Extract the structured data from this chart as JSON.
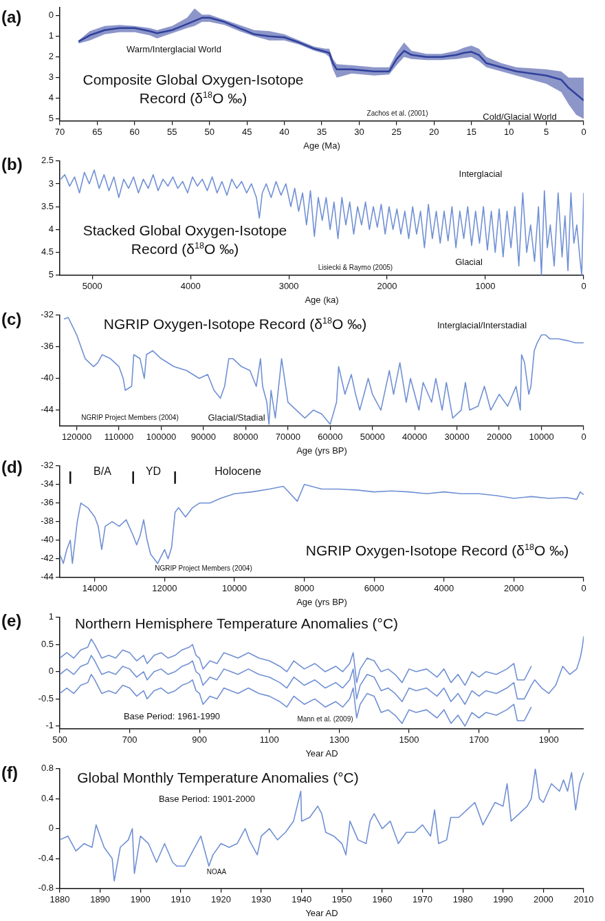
{
  "chart_data": [
    {
      "type": "line",
      "title": "Composite Global Oxygen-Isotope Record (δ$^{18}$O ‰)",
      "xlabel": "Age (Ma)",
      "xlim": [
        70,
        0
      ],
      "xticks": [
        70,
        65,
        60,
        55,
        50,
        45,
        40,
        35,
        30,
        25,
        20,
        15,
        10,
        5,
        0
      ],
      "ylim": [
        5.1,
        -0.4
      ],
      "yticks": [
        0,
        1,
        2,
        3,
        4,
        5
      ],
      "annotations": [
        "(a)",
        "Warm/Interglacial World",
        "Zachos et al. (2001)",
        "Cold/Glacial World"
      ],
      "x": [
        67.5,
        66,
        64,
        62,
        60,
        58,
        57,
        55,
        53,
        52,
        51,
        50,
        48,
        46,
        44,
        42,
        40,
        38,
        36,
        34.5,
        34,
        33.5,
        33,
        31,
        28,
        26,
        25,
        24,
        23,
        21,
        19,
        17,
        16,
        15,
        14,
        13,
        11,
        9,
        7,
        5,
        3,
        2,
        1,
        0
      ],
      "series": [
        {
          "color": "#2f409c",
          "values": [
            1.25,
            0.95,
            0.7,
            0.6,
            0.6,
            0.75,
            0.85,
            0.7,
            0.4,
            0.25,
            0.1,
            0.1,
            0.3,
            0.6,
            0.9,
            1.0,
            1.05,
            1.3,
            1.6,
            1.75,
            1.8,
            2.3,
            2.6,
            2.6,
            2.7,
            2.7,
            2.1,
            1.7,
            1.9,
            2.0,
            2.0,
            1.9,
            1.8,
            1.75,
            1.9,
            2.3,
            2.5,
            2.7,
            2.8,
            2.9,
            3.1,
            3.5,
            3.8,
            4.1
          ],
          "lower": [
            1.2,
            0.75,
            0.5,
            0.45,
            0.5,
            0.6,
            0.7,
            0.5,
            0.1,
            -0.35,
            -0.05,
            -0.05,
            0.2,
            0.45,
            0.7,
            0.75,
            0.9,
            1.2,
            1.5,
            1.6,
            1.6,
            2.1,
            2.35,
            2.4,
            2.5,
            2.5,
            1.8,
            1.3,
            1.7,
            1.85,
            1.85,
            1.7,
            1.55,
            1.45,
            1.6,
            2.0,
            2.3,
            2.5,
            2.55,
            2.6,
            2.7,
            3.0,
            3.0,
            3.0
          ],
          "upper": [
            1.35,
            1.2,
            0.9,
            0.8,
            0.8,
            0.95,
            1.1,
            0.85,
            0.6,
            0.5,
            0.3,
            0.3,
            0.45,
            0.75,
            1.0,
            1.2,
            1.2,
            1.4,
            1.7,
            1.85,
            2.0,
            2.6,
            3.0,
            2.8,
            2.9,
            2.85,
            2.4,
            2.0,
            2.1,
            2.15,
            2.15,
            2.1,
            2.05,
            2.0,
            2.2,
            2.5,
            2.7,
            2.9,
            3.1,
            3.3,
            3.7,
            4.3,
            4.8,
            5.0
          ]
        }
      ]
    },
    {
      "type": "line",
      "title": "Stacked Global Oxygen-Isotope Record (δ$^{18}$O ‰)",
      "xlabel": "Age (ka)",
      "xlim": [
        5330,
        0
      ],
      "xticks": [
        5000,
        4000,
        3000,
        2000,
        1000,
        0
      ],
      "ylim": [
        5,
        2.5
      ],
      "yticks": [
        2.5,
        3,
        3.5,
        4,
        4.5,
        5
      ],
      "annotations": [
        "(b)",
        "Interglacial",
        "Lisiecki & Raymo (2005)",
        "Glacial"
      ],
      "x": [
        5320,
        5280,
        5230,
        5180,
        5130,
        5080,
        5030,
        4980,
        4930,
        4880,
        4830,
        4780,
        4730,
        4680,
        4630,
        4580,
        4530,
        4480,
        4430,
        4380,
        4330,
        4280,
        4230,
        4180,
        4130,
        4080,
        4030,
        3980,
        3930,
        3880,
        3830,
        3780,
        3730,
        3680,
        3630,
        3580,
        3530,
        3480,
        3430,
        3380,
        3330,
        3300,
        3270,
        3230,
        3180,
        3130,
        3080,
        3030,
        2980,
        2940,
        2900,
        2860,
        2820,
        2780,
        2740,
        2700,
        2660,
        2620,
        2580,
        2540,
        2500,
        2460,
        2420,
        2380,
        2340,
        2300,
        2260,
        2220,
        2180,
        2140,
        2100,
        2060,
        2020,
        1980,
        1940,
        1900,
        1860,
        1820,
        1780,
        1740,
        1700,
        1660,
        1620,
        1580,
        1540,
        1500,
        1460,
        1420,
        1380,
        1340,
        1300,
        1260,
        1220,
        1180,
        1140,
        1100,
        1060,
        1020,
        980,
        940,
        900,
        860,
        820,
        780,
        740,
        700,
        660,
        620,
        580,
        540,
        500,
        460,
        430,
        400,
        370,
        340,
        300,
        260,
        220,
        190,
        160,
        130,
        100,
        70,
        40,
        20,
        0
      ],
      "series": [
        {
          "color": "#7090d4",
          "values": [
            2.9,
            2.8,
            3.05,
            2.85,
            3.2,
            2.75,
            3.0,
            2.7,
            3.1,
            2.8,
            3.15,
            2.85,
            3.3,
            2.9,
            3.1,
            2.85,
            3.2,
            2.9,
            3.1,
            2.8,
            3.15,
            2.9,
            3.05,
            2.85,
            3.1,
            2.95,
            3.2,
            2.85,
            3.05,
            2.9,
            3.15,
            2.85,
            3.2,
            2.95,
            3.25,
            2.9,
            3.1,
            2.95,
            3.2,
            3.0,
            3.3,
            3.75,
            3.2,
            3.0,
            3.3,
            2.95,
            3.25,
            3.0,
            3.5,
            3.1,
            3.6,
            3.2,
            3.9,
            3.15,
            4.15,
            3.3,
            3.8,
            3.3,
            4.0,
            3.4,
            4.2,
            3.3,
            3.9,
            3.4,
            4.1,
            3.5,
            3.9,
            3.4,
            4.0,
            3.5,
            3.95,
            3.45,
            4.1,
            3.5,
            4.0,
            3.55,
            4.1,
            3.6,
            4.2,
            3.5,
            4.1,
            3.6,
            4.4,
            3.45,
            4.2,
            3.6,
            4.3,
            3.6,
            4.25,
            3.5,
            4.4,
            3.6,
            4.2,
            3.5,
            4.35,
            3.6,
            4.3,
            3.5,
            4.45,
            3.6,
            4.5,
            3.55,
            4.6,
            3.6,
            4.4,
            3.5,
            4.8,
            3.2,
            4.5,
            3.9,
            4.7,
            3.5,
            5.0,
            3.15,
            4.4,
            3.9,
            4.8,
            3.2,
            4.6,
            3.7,
            4.9,
            3.2,
            4.3,
            3.9,
            4.6,
            5.0,
            3.2
          ]
        }
      ]
    },
    {
      "type": "line",
      "title": "NGRIP Oxygen-Isotope Record (δ$^{18}$O ‰)",
      "xlabel": "Age (yrs BP)",
      "xlim": [
        124000,
        0
      ],
      "xticks": [
        120000,
        110000,
        100000,
        90000,
        80000,
        70000,
        60000,
        50000,
        40000,
        30000,
        20000,
        10000,
        0
      ],
      "ylim": [
        -46,
        -32
      ],
      "yticks": [
        -32,
        -36,
        -40,
        -44
      ],
      "annotations": [
        "(c)",
        "Interglacial/Interstadial",
        "NGRIP Project Members (2004)",
        "Glacial/Stadial"
      ],
      "x": [
        123000,
        122000,
        120000,
        118000,
        116000,
        115000,
        114000,
        112000,
        110000,
        109000,
        108500,
        107000,
        106500,
        105000,
        104000,
        103500,
        102000,
        100000,
        97000,
        94000,
        91000,
        89000,
        87500,
        86000,
        85000,
        84000,
        83000,
        81000,
        79000,
        77500,
        76500,
        76000,
        75000,
        74500,
        74000,
        73000,
        72000,
        71500,
        70000,
        68000,
        66000,
        64000,
        62000,
        60000,
        58500,
        58000,
        56500,
        55000,
        54000,
        53000,
        51000,
        50000,
        48000,
        46000,
        45000,
        43500,
        42000,
        41000,
        39000,
        38000,
        36000,
        35000,
        33500,
        32500,
        31000,
        29000,
        28000,
        27000,
        25000,
        23500,
        22000,
        20000,
        18000,
        16000,
        15000,
        14700,
        14000,
        13000,
        12500,
        11700,
        11000,
        10000,
        9000,
        8000,
        6000,
        4000,
        2000,
        0
      ],
      "series": [
        {
          "color": "#7090d4",
          "values": [
            -32.5,
            -32.3,
            -34.5,
            -37.5,
            -38.5,
            -38,
            -37,
            -37.5,
            -38.5,
            -40,
            -41.5,
            -41,
            -37,
            -37.5,
            -40,
            -37,
            -36.5,
            -37.5,
            -38.5,
            -39,
            -40,
            -39.5,
            -41.5,
            -42.5,
            -41,
            -37.5,
            -37.5,
            -38.5,
            -39,
            -41,
            -37.5,
            -41,
            -43,
            -45.8,
            -41.5,
            -45,
            -40,
            -37.5,
            -43,
            -44,
            -45,
            -44,
            -44.5,
            -45.8,
            -43,
            -38.5,
            -42,
            -39.5,
            -42,
            -44,
            -40,
            -42,
            -44,
            -39,
            -42,
            -38,
            -43,
            -40,
            -44,
            -40.5,
            -43,
            -40,
            -44,
            -40.5,
            -45,
            -44,
            -40.5,
            -44,
            -43.5,
            -41,
            -44,
            -42,
            -43.5,
            -41,
            -44,
            -37,
            -38,
            -42,
            -41,
            -36.5,
            -35.5,
            -34.5,
            -34.5,
            -35,
            -35,
            -35.2,
            -35.5,
            -35.5
          ]
        }
      ]
    },
    {
      "type": "line",
      "title": "NGRIP Oxygen-Isotope Record (δ$^{18}$O ‰)",
      "xlabel": "Age (yrs BP)",
      "xlim": [
        15000,
        0
      ],
      "xticks": [
        14000,
        12000,
        10000,
        8000,
        6000,
        4000,
        2000,
        0
      ],
      "ylim": [
        -44,
        -32
      ],
      "yticks": [
        -32,
        -34,
        -36,
        -38,
        -40,
        -42,
        -44
      ],
      "annotations": [
        "(d)",
        "B/A",
        "YD",
        "Holocene",
        "NGRIP Project Members (2004)"
      ],
      "ref_lines": [
        {
          "axis": "x",
          "value": 14700
        },
        {
          "axis": "x",
          "value": 12900
        },
        {
          "axis": "x",
          "value": 11700
        }
      ],
      "x": [
        15000,
        14900,
        14800,
        14700,
        14640,
        14500,
        14400,
        14200,
        14000,
        13900,
        13800,
        13700,
        13500,
        13300,
        13100,
        12900,
        12800,
        12700,
        12600,
        12500,
        12400,
        12200,
        12000,
        11900,
        11800,
        11700,
        11600,
        11400,
        11200,
        11000,
        10700,
        10400,
        10000,
        9500,
        9000,
        8600,
        8200,
        8000,
        7500,
        7000,
        6500,
        6000,
        5500,
        5000,
        4500,
        4000,
        3500,
        3000,
        2500,
        2000,
        1500,
        1000,
        500,
        200,
        100,
        0
      ],
      "series": [
        {
          "color": "#7090d4",
          "values": [
            -41.5,
            -42.5,
            -41,
            -40,
            -42.5,
            -38,
            -36,
            -36.5,
            -37.5,
            -38.5,
            -41,
            -38.5,
            -38,
            -38.5,
            -37.8,
            -39.5,
            -40.5,
            -39.5,
            -37.8,
            -40,
            -41.5,
            -42.5,
            -41,
            -42,
            -40.8,
            -37,
            -36.5,
            -37.5,
            -36.5,
            -36,
            -36,
            -35.5,
            -35,
            -34.8,
            -34.5,
            -34.2,
            -35.8,
            -34,
            -34.5,
            -34.5,
            -34.6,
            -34.8,
            -34.7,
            -34.8,
            -35,
            -34.8,
            -35,
            -35,
            -35.2,
            -35.5,
            -35.3,
            -35.5,
            -35.4,
            -35.6,
            -34.8,
            -35.1
          ]
        }
      ]
    },
    {
      "type": "line",
      "title": "Northern Hemisphere Temperature Anomalies (°C)",
      "xlabel": "Year AD",
      "xlim": [
        500,
        2000
      ],
      "xticks": [
        500,
        700,
        900,
        1100,
        1300,
        1500,
        1700,
        1900
      ],
      "ylim": [
        -1.05,
        1
      ],
      "yticks": [
        -1,
        -0.5,
        0,
        0.5,
        1
      ],
      "annotations": [
        "(e)",
        "Base Period:  1961-1990",
        "Mann et al. (2009)"
      ],
      "series": [
        {
          "color": "#7090d4",
          "x": [
            500,
            520,
            540,
            560,
            580,
            590,
            600,
            620,
            640,
            660,
            680,
            700,
            720,
            740,
            750,
            770,
            790,
            810,
            830,
            850,
            870,
            880,
            890,
            900,
            910,
            930,
            950,
            970,
            990,
            1010,
            1040,
            1070,
            1100,
            1130,
            1150,
            1170,
            1200,
            1230,
            1260,
            1290,
            1310,
            1330,
            1340,
            1350,
            1360,
            1380,
            1400,
            1420,
            1440,
            1460,
            1480,
            1500,
            1520,
            1550,
            1580,
            1600,
            1620,
            1640,
            1660,
            1680,
            1700,
            1720,
            1750,
            1780,
            1800,
            1810,
            1830,
            1850,
            1860,
            1880,
            1900,
            1920,
            1940,
            1960,
            1980,
            1990,
            1996,
            2000
          ],
          "values": [
            -0.05,
            0.05,
            -0.05,
            0.1,
            0.15,
            0.3,
            0.2,
            -0.05,
            0,
            -0.05,
            0.1,
            0.05,
            -0.1,
            0,
            -0.15,
            0,
            0.05,
            -0.05,
            0,
            0.1,
            0.15,
            0.2,
            0,
            -0.05,
            -0.25,
            -0.1,
            -0.15,
            0.05,
            0,
            -0.05,
            0.05,
            -0.05,
            -0.1,
            -0.2,
            -0.3,
            -0.1,
            -0.25,
            -0.15,
            -0.3,
            -0.2,
            -0.3,
            -0.15,
            0.05,
            -0.5,
            -0.25,
            -0.05,
            -0.1,
            -0.35,
            -0.3,
            -0.4,
            -0.55,
            -0.3,
            -0.35,
            -0.3,
            -0.45,
            -0.3,
            -0.55,
            -0.4,
            -0.6,
            -0.35,
            -0.45,
            -0.35,
            -0.4,
            -0.3,
            -0.2,
            -0.5,
            -0.5,
            -0.25,
            -0.15,
            -0.3,
            -0.4,
            -0.25,
            0.1,
            -0.05,
            0.05,
            0.25,
            0.45,
            0.65
          ]
        },
        {
          "color": "#7090d4",
          "x": [
            500,
            520,
            540,
            560,
            580,
            590,
            600,
            620,
            640,
            660,
            680,
            700,
            720,
            740,
            750,
            770,
            790,
            810,
            830,
            850,
            870,
            880,
            890,
            900,
            910,
            930,
            950,
            970,
            990,
            1010,
            1040,
            1070,
            1100,
            1130,
            1150,
            1170,
            1200,
            1230,
            1260,
            1290,
            1310,
            1330,
            1340,
            1350,
            1360,
            1380,
            1400,
            1420,
            1440,
            1460,
            1480,
            1500,
            1520,
            1550,
            1580,
            1600,
            1620,
            1640,
            1660,
            1680,
            1700,
            1720,
            1750,
            1780,
            1800,
            1810,
            1830,
            1850
          ],
          "values": [
            0.25,
            0.35,
            0.25,
            0.4,
            0.45,
            0.6,
            0.5,
            0.25,
            0.3,
            0.25,
            0.4,
            0.35,
            0.2,
            0.3,
            0.15,
            0.3,
            0.35,
            0.25,
            0.3,
            0.4,
            0.45,
            0.5,
            0.3,
            0.25,
            0.05,
            0.2,
            0.15,
            0.35,
            0.3,
            0.25,
            0.35,
            0.25,
            0.2,
            0.1,
            0,
            0.2,
            0.05,
            0.15,
            0,
            0.1,
            0,
            0.15,
            0.35,
            -0.2,
            0.05,
            0.25,
            0.2,
            0,
            0.05,
            -0.05,
            -0.2,
            0.05,
            0,
            0.05,
            -0.1,
            0.05,
            -0.2,
            -0.05,
            -0.25,
            0,
            -0.1,
            0,
            -0.05,
            0.05,
            0.15,
            -0.15,
            -0.15,
            0.1
          ]
        },
        {
          "color": "#7090d4",
          "x": [
            500,
            520,
            540,
            560,
            580,
            590,
            600,
            620,
            640,
            660,
            680,
            700,
            720,
            740,
            750,
            770,
            790,
            810,
            830,
            850,
            870,
            880,
            890,
            900,
            910,
            930,
            950,
            970,
            990,
            1010,
            1040,
            1070,
            1100,
            1130,
            1150,
            1170,
            1200,
            1230,
            1260,
            1290,
            1310,
            1330,
            1340,
            1350,
            1360,
            1380,
            1400,
            1420,
            1440,
            1460,
            1480,
            1500,
            1520,
            1550,
            1580,
            1600,
            1620,
            1640,
            1660,
            1680,
            1700,
            1720,
            1750,
            1780,
            1800,
            1810,
            1830,
            1850
          ],
          "values": [
            -0.4,
            -0.3,
            -0.4,
            -0.25,
            -0.2,
            -0.05,
            -0.15,
            -0.4,
            -0.35,
            -0.4,
            -0.25,
            -0.3,
            -0.45,
            -0.35,
            -0.5,
            -0.35,
            -0.3,
            -0.4,
            -0.35,
            -0.25,
            -0.2,
            -0.15,
            -0.35,
            -0.4,
            -0.6,
            -0.45,
            -0.5,
            -0.3,
            -0.35,
            -0.4,
            -0.3,
            -0.4,
            -0.45,
            -0.55,
            -0.65,
            -0.45,
            -0.6,
            -0.5,
            -0.65,
            -0.55,
            -0.65,
            -0.5,
            -0.3,
            -0.85,
            -0.6,
            -0.4,
            -0.45,
            -0.75,
            -0.7,
            -0.8,
            -0.95,
            -0.7,
            -0.75,
            -0.7,
            -0.85,
            -0.7,
            -0.95,
            -0.8,
            -1.0,
            -0.75,
            -0.85,
            -0.75,
            -0.8,
            -0.7,
            -0.6,
            -0.9,
            -0.9,
            -0.65
          ]
        }
      ]
    },
    {
      "type": "line",
      "title": "Global Monthly Temperature Anomalies (°C)",
      "xlabel": "Year AD",
      "xlim": [
        1880,
        2010
      ],
      "xticks": [
        1880,
        1890,
        1900,
        1910,
        1920,
        1930,
        1940,
        1950,
        1960,
        1970,
        1980,
        1990,
        2000,
        2010
      ],
      "ylim": [
        -0.8,
        0.8
      ],
      "yticks": [
        -0.8,
        -0.4,
        0,
        0.4,
        0.8
      ],
      "annotations": [
        "(f)",
        "Base Period:  1901-2000",
        "NOAA"
      ],
      "x": [
        1880,
        1882,
        1884,
        1886,
        1888,
        1889,
        1891,
        1893,
        1893.5,
        1895,
        1897,
        1898,
        1898.5,
        1900,
        1902,
        1904,
        1906,
        1908,
        1909,
        1911,
        1913,
        1915,
        1917,
        1918,
        1920,
        1922,
        1924,
        1926,
        1927,
        1929,
        1930,
        1932,
        1934,
        1936,
        1938,
        1939.8,
        1940,
        1942,
        1944,
        1945,
        1946,
        1948,
        1950,
        1951,
        1952,
        1954,
        1956,
        1957,
        1958,
        1960,
        1962,
        1964,
        1966,
        1968,
        1970,
        1972,
        1973,
        1974,
        1976,
        1977,
        1979,
        1981,
        1983,
        1985,
        1987,
        1988,
        1990,
        1991,
        1992,
        1994,
        1996,
        1997,
        1998,
        1999,
        2000,
        2002,
        2003,
        2004,
        2005,
        2006,
        2007,
        2008,
        2009,
        2010
      ],
      "series": [
        {
          "color": "#7090d4",
          "values": [
            -0.15,
            -0.1,
            -0.3,
            -0.2,
            -0.25,
            0.05,
            -0.25,
            -0.4,
            -0.7,
            -0.25,
            -0.15,
            0.0,
            -0.6,
            -0.1,
            -0.2,
            -0.45,
            -0.2,
            -0.45,
            -0.5,
            -0.5,
            -0.3,
            -0.1,
            -0.5,
            -0.35,
            -0.2,
            -0.25,
            -0.2,
            0.0,
            -0.15,
            -0.35,
            -0.1,
            0.0,
            -0.15,
            -0.05,
            0.1,
            0.5,
            0.1,
            0.15,
            0.3,
            0.2,
            -0.05,
            -0.1,
            -0.2,
            -0.35,
            0.1,
            -0.15,
            -0.2,
            0.1,
            0.2,
            0.0,
            0.1,
            -0.2,
            -0.05,
            -0.05,
            0.05,
            -0.1,
            0.25,
            -0.2,
            -0.15,
            0.15,
            0.15,
            0.25,
            0.35,
            0.05,
            0.25,
            0.35,
            0.3,
            0.6,
            0.1,
            0.2,
            0.3,
            0.4,
            0.8,
            0.4,
            0.35,
            0.6,
            0.55,
            0.5,
            0.65,
            0.5,
            0.75,
            0.25,
            0.6,
            0.75
          ]
        }
      ]
    }
  ]
}
